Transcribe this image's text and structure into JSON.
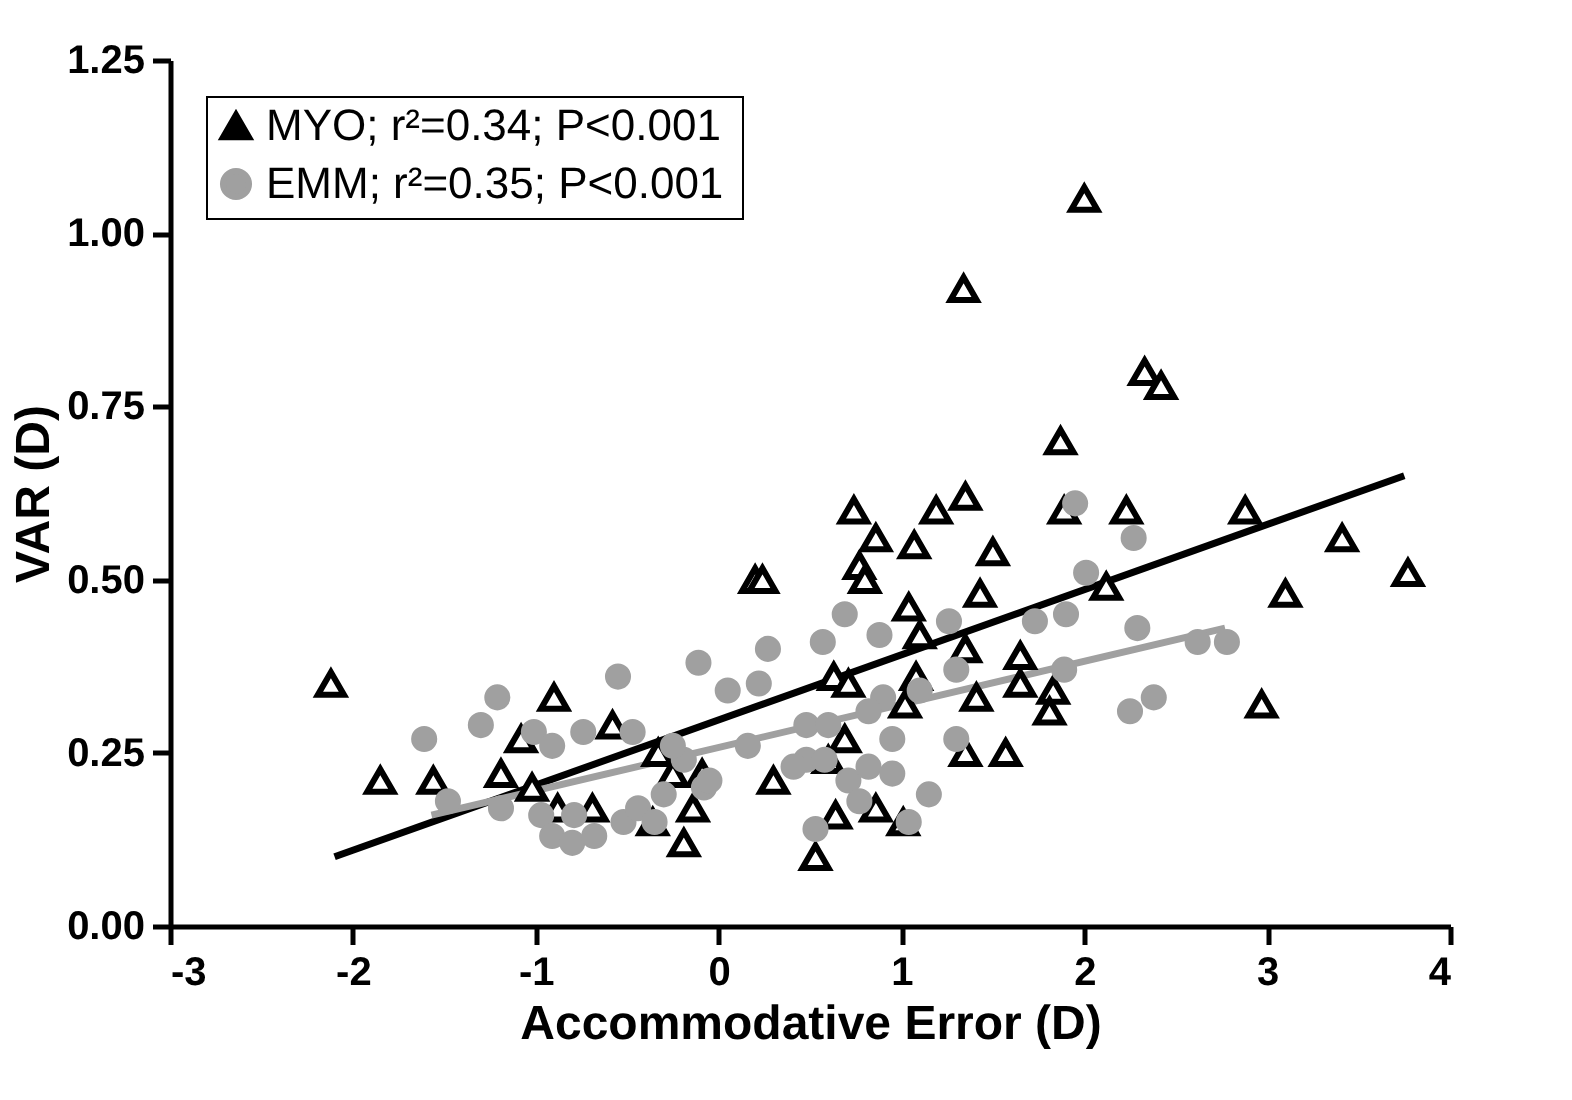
{
  "chart_data": {
    "type": "scatter",
    "xlabel": "Accommodative Error (D)",
    "ylabel": "VAR (D)",
    "xlim": [
      -3,
      4
    ],
    "xticks": [
      -3,
      -2,
      -1,
      0,
      1,
      2,
      3,
      4
    ],
    "ylim": [
      0,
      1.25
    ],
    "yticks": [
      {
        "value": 0,
        "label": "0.00"
      },
      {
        "value": 0.25,
        "label": "0.25"
      },
      {
        "value": 0.5,
        "label": "0.50"
      },
      {
        "value": 0.75,
        "label": "0.75"
      },
      {
        "value": 1,
        "label": "1.00"
      },
      {
        "value": 1.25,
        "label": "1.25"
      }
    ],
    "grid": false,
    "legend": "top left",
    "series": [
      {
        "name": "MYO;  r²=0.34; P<0.001",
        "type": "scatter",
        "marker": "triangle",
        "color": "#000000",
        "x": [
          -2.12,
          -1.85,
          -1.56,
          -1.19,
          -1.08,
          -0.9,
          -1.02,
          -0.88,
          -0.69,
          -0.58,
          -0.33,
          -0.25,
          -0.09,
          -0.14,
          -0.36,
          -0.19,
          0.2,
          0.24,
          0.74,
          0.86,
          1.07,
          1.19,
          1.35,
          1.5,
          0.77,
          0.8,
          1.04,
          1.43,
          1.1,
          1.35,
          1.65,
          1.65,
          1.83,
          1.81,
          1.41,
          1.08,
          1.02,
          0.63,
          0.71,
          0.69,
          0.6,
          0.3,
          1.35,
          1.57,
          0.64,
          0.53,
          0.86,
          1.01,
          1.87,
          1.89,
          2.23,
          2.12,
          2.0,
          1.34,
          2.33,
          2.42,
          2.88,
          3.41,
          3.77,
          3.1,
          2.97
        ],
        "values": [
          0.35,
          0.21,
          0.21,
          0.22,
          0.27,
          0.33,
          0.2,
          0.17,
          0.17,
          0.29,
          0.25,
          0.22,
          0.22,
          0.17,
          0.15,
          0.12,
          0.5,
          0.5,
          0.6,
          0.56,
          0.55,
          0.6,
          0.62,
          0.54,
          0.52,
          0.5,
          0.46,
          0.48,
          0.42,
          0.4,
          0.39,
          0.35,
          0.34,
          0.31,
          0.33,
          0.36,
          0.32,
          0.36,
          0.35,
          0.27,
          0.24,
          0.21,
          0.25,
          0.25,
          0.16,
          0.1,
          0.17,
          0.15,
          0.7,
          0.6,
          0.6,
          0.49,
          1.05,
          0.92,
          0.8,
          0.78,
          0.6,
          0.56,
          0.51,
          0.48,
          0.32
        ]
      },
      {
        "name": "EMM; r²=0.35; P<0.001",
        "type": "scatter",
        "marker": "circle",
        "color": "#a0a0a0",
        "x": [
          -1.61,
          -1.3,
          -1.21,
          -1.01,
          -0.91,
          -0.74,
          -0.55,
          -0.47,
          -0.11,
          0.05,
          -1.48,
          -1.19,
          -0.97,
          -0.91,
          -0.8,
          -0.68,
          -0.79,
          -0.52,
          -0.44,
          -0.3,
          -0.35,
          -0.19,
          -0.08,
          -0.25,
          0.69,
          0.57,
          0.27,
          0.22,
          0.88,
          1.26,
          1.73,
          1.9,
          1.95,
          2.27,
          2.01,
          2.29,
          1.89,
          1.3,
          1.1,
          0.9,
          0.48,
          0.16,
          -0.05,
          0.48,
          0.6,
          0.82,
          0.95,
          1.3,
          0.58,
          0.71,
          0.82,
          0.95,
          1.15,
          1.04,
          0.77,
          0.53,
          0.41,
          2.25,
          2.38,
          2.62,
          2.78
        ],
        "values": [
          0.27,
          0.29,
          0.33,
          0.28,
          0.26,
          0.28,
          0.36,
          0.28,
          0.38,
          0.34,
          0.18,
          0.17,
          0.16,
          0.13,
          0.12,
          0.13,
          0.16,
          0.15,
          0.17,
          0.19,
          0.15,
          0.24,
          0.2,
          0.26,
          0.45,
          0.41,
          0.4,
          0.35,
          0.42,
          0.44,
          0.44,
          0.45,
          0.61,
          0.56,
          0.51,
          0.43,
          0.37,
          0.37,
          0.34,
          0.33,
          0.29,
          0.26,
          0.21,
          0.24,
          0.29,
          0.31,
          0.27,
          0.27,
          0.24,
          0.21,
          0.23,
          0.22,
          0.19,
          0.15,
          0.18,
          0.14,
          0.23,
          0.31,
          0.33,
          0.41,
          0.41
        ]
      },
      {
        "type": "line",
        "color": "#000000",
        "x": [
          -2.1,
          3.75
        ],
        "values": [
          0.1,
          0.65
        ]
      },
      {
        "type": "line",
        "color": "#a0a0a0",
        "x": [
          -1.57,
          2.77
        ],
        "values": [
          0.16,
          0.43
        ]
      }
    ]
  }
}
